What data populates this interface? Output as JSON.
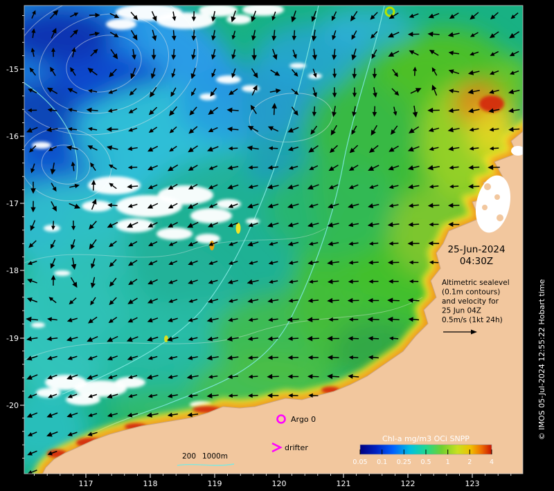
{
  "colors": {
    "background": "#000000",
    "land": "#f2c79e",
    "ocean_base": "#18b183",
    "marker_magenta": "#ff00ff",
    "bathy_contour_cyan": "#7fe8e0",
    "axis_text": "#ffffff",
    "annotation_text": "#000000"
  },
  "axes": {
    "x_ticks": [
      "117",
      "118",
      "119",
      "120",
      "121",
      "122",
      "123"
    ],
    "y_ticks": [
      "-15",
      "-16",
      "-17",
      "-18",
      "-19",
      "-20"
    ]
  },
  "stamp": {
    "date": "25-Jun-2024",
    "time": "04:30Z"
  },
  "annotation": {
    "lines": [
      "Altimetric sealevel",
      "(0.1m contours)",
      "and velocity for",
      "25 Jun 04Z",
      "0.5m/s (1kt 24h)"
    ]
  },
  "markers": {
    "argo_label": "Argo 0",
    "drifter_label": "drifter"
  },
  "bathymetry_legend": {
    "label_200": "200",
    "label_1000": "1000m"
  },
  "colorbar": {
    "title": "Chl-a mg/m3 OCi SNPP",
    "tick_labels": [
      "0.05",
      "0.1",
      "0.25",
      "0.5",
      "1",
      "2",
      "4"
    ]
  },
  "credit": "© IMOS 05-Jul-2024 12:55:22 Hobart time"
}
